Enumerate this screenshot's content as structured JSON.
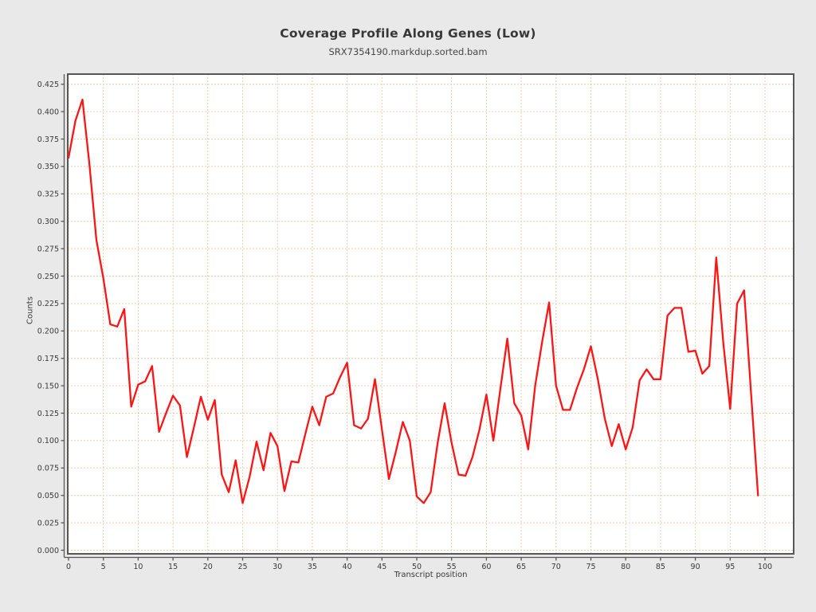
{
  "chart_data": {
    "type": "line",
    "title": "Coverage Profile Along Genes (Low)",
    "subtitle": "SRX7354190.markdup.sorted.bam",
    "xlabel": "Transcript position",
    "ylabel": "Counts",
    "xlim": [
      -0.5,
      104.2
    ],
    "ylim": [
      0,
      0.434
    ],
    "grid": true,
    "legend": false,
    "x_ticks": [
      0,
      5,
      10,
      15,
      20,
      25,
      30,
      35,
      40,
      45,
      50,
      55,
      60,
      65,
      70,
      75,
      80,
      85,
      90,
      95,
      100
    ],
    "y_ticks": [
      "0.000",
      "0.025",
      "0.050",
      "0.075",
      "0.100",
      "0.125",
      "0.150",
      "0.175",
      "0.200",
      "0.225",
      "0.250",
      "0.275",
      "0.300",
      "0.325",
      "0.350",
      "0.375",
      "0.400",
      "0.425"
    ],
    "x_values": [
      0,
      1,
      2,
      3,
      4,
      5,
      6,
      7,
      8,
      9,
      10,
      11,
      12,
      13,
      14,
      15,
      16,
      17,
      18,
      19,
      20,
      21,
      22,
      23,
      24,
      25,
      26,
      27,
      28,
      29,
      30,
      31,
      32,
      33,
      34,
      35,
      36,
      37,
      38,
      39,
      40,
      41,
      42,
      43,
      44,
      45,
      46,
      47,
      48,
      49,
      50,
      51,
      52,
      53,
      54,
      55,
      56,
      57,
      58,
      59,
      60,
      61,
      62,
      63,
      64,
      65,
      66,
      67,
      68,
      69,
      70,
      71,
      72,
      73,
      74,
      75,
      76,
      77,
      78,
      79,
      80,
      81,
      82,
      83,
      84,
      85,
      86,
      87,
      88,
      89,
      90,
      91,
      92,
      93,
      94,
      95,
      96,
      97,
      98,
      99
    ],
    "y_values": [
      0.358,
      0.392,
      0.411,
      0.352,
      0.283,
      0.248,
      0.206,
      0.204,
      0.22,
      0.131,
      0.151,
      0.154,
      0.168,
      0.108,
      0.125,
      0.141,
      0.132,
      0.085,
      0.112,
      0.14,
      0.119,
      0.137,
      0.069,
      0.053,
      0.082,
      0.043,
      0.067,
      0.099,
      0.073,
      0.107,
      0.095,
      0.054,
      0.081,
      0.08,
      0.106,
      0.131,
      0.114,
      0.14,
      0.143,
      0.158,
      0.171,
      0.114,
      0.111,
      0.12,
      0.156,
      0.11,
      0.065,
      0.09,
      0.117,
      0.1,
      0.049,
      0.043,
      0.053,
      0.098,
      0.134,
      0.098,
      0.069,
      0.068,
      0.085,
      0.11,
      0.142,
      0.1,
      0.147,
      0.193,
      0.134,
      0.123,
      0.092,
      0.15,
      0.19,
      0.226,
      0.15,
      0.128,
      0.128,
      0.148,
      0.165,
      0.186,
      0.156,
      0.12,
      0.095,
      0.115,
      0.092,
      0.112,
      0.155,
      0.165,
      0.156,
      0.156,
      0.214,
      0.221,
      0.221,
      0.181,
      0.182,
      0.161,
      0.168,
      0.267,
      0.19,
      0.129,
      0.225,
      0.237,
      0.143,
      0.05
    ]
  },
  "colors": {
    "page_bg": "#e9e9e9",
    "plot_bg": "#ffffff",
    "grid": "#f0cdaa",
    "frame": "#575757",
    "axis": "#575757",
    "line": "#fb1515",
    "tick_text": "#3a3a3a"
  }
}
